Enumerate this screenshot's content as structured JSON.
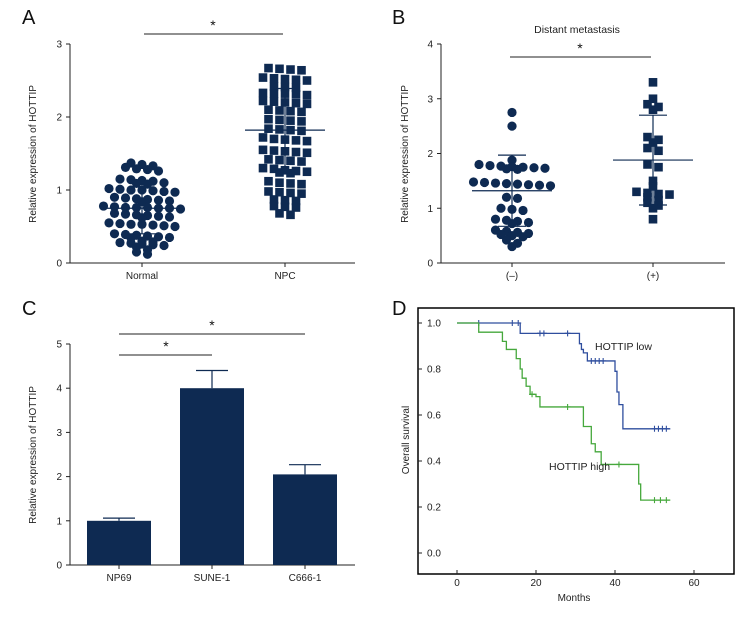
{
  "colors": {
    "navy": "#0e2a52",
    "km_low": "#2f4e9e",
    "km_high": "#46a83c",
    "axis": "#222222"
  },
  "chart_data": [
    {
      "panel": "A",
      "type": "scatter",
      "title": "",
      "xlabel": "",
      "ylabel": "Relative expression of HOTTIP",
      "ylim": [
        0,
        3
      ],
      "yticks": [
        "0",
        "1",
        "2",
        "3"
      ],
      "categories": [
        "Normal",
        "NPC"
      ],
      "significance": [
        {
          "from": "Normal",
          "to": "NPC",
          "label": "*"
        }
      ],
      "series": [
        {
          "name": "Normal",
          "marker": "circle",
          "mean": 0.75,
          "sd": 0.35,
          "values": [
            1.37,
            1.35,
            1.33,
            1.31,
            1.29,
            1.28,
            1.26,
            1.15,
            1.14,
            1.13,
            1.12,
            1.1,
            1.09,
            1.08,
            1.02,
            1.01,
            1.0,
            1.0,
            0.99,
            0.98,
            0.97,
            0.9,
            0.89,
            0.88,
            0.87,
            0.86,
            0.85,
            0.84,
            0.78,
            0.77,
            0.76,
            0.76,
            0.76,
            0.75,
            0.75,
            0.74,
            0.68,
            0.67,
            0.66,
            0.65,
            0.64,
            0.63,
            0.62,
            0.55,
            0.54,
            0.53,
            0.53,
            0.52,
            0.51,
            0.5,
            0.4,
            0.39,
            0.38,
            0.37,
            0.36,
            0.35,
            0.34,
            0.3,
            0.29,
            0.28,
            0.27,
            0.26,
            0.25,
            0.24,
            0.22,
            0.18,
            0.15,
            0.12
          ]
        },
        {
          "name": "NPC",
          "marker": "square",
          "mean": 1.82,
          "sd": 0.57,
          "values": [
            2.67,
            2.66,
            2.65,
            2.64,
            2.54,
            2.53,
            2.52,
            2.51,
            2.5,
            2.42,
            2.41,
            2.4,
            2.33,
            2.32,
            2.32,
            2.31,
            2.3,
            2.22,
            2.21,
            2.2,
            2.19,
            2.18,
            2.1,
            2.09,
            2.08,
            2.07,
            1.97,
            1.96,
            1.95,
            1.94,
            1.84,
            1.83,
            1.82,
            1.81,
            1.72,
            1.7,
            1.69,
            1.68,
            1.67,
            1.55,
            1.54,
            1.53,
            1.52,
            1.51,
            1.42,
            1.41,
            1.4,
            1.39,
            1.3,
            1.29,
            1.27,
            1.26,
            1.25,
            1.24,
            1.23,
            1.12,
            1.1,
            1.09,
            1.08,
            0.98,
            0.97,
            0.96,
            0.95,
            0.87,
            0.86,
            0.85,
            0.78,
            0.77,
            0.76,
            0.68,
            0.66
          ]
        }
      ]
    },
    {
      "panel": "B",
      "type": "scatter",
      "title": "Distant metastasis",
      "xlabel": "",
      "ylabel": "Relative expression of HOTTIP",
      "ylim": [
        0,
        4
      ],
      "yticks": [
        "0",
        "1",
        "2",
        "3",
        "4"
      ],
      "categories": [
        "(–)",
        "(+)"
      ],
      "significance": [
        {
          "from": "(–)",
          "to": "(+)",
          "label": "*"
        }
      ],
      "series": [
        {
          "name": "(–)",
          "marker": "circle",
          "mean": 1.32,
          "sd": 0.65,
          "values": [
            2.75,
            2.5,
            1.88,
            1.8,
            1.78,
            1.77,
            1.76,
            1.75,
            1.74,
            1.73,
            1.72,
            1.71,
            1.48,
            1.47,
            1.46,
            1.45,
            1.44,
            1.43,
            1.42,
            1.41,
            1.2,
            1.18,
            1.0,
            0.98,
            0.96,
            0.8,
            0.78,
            0.76,
            0.74,
            0.72,
            0.6,
            0.58,
            0.56,
            0.54,
            0.52,
            0.5,
            0.48,
            0.42,
            0.36,
            0.3
          ]
        },
        {
          "name": "(+)",
          "marker": "square",
          "mean": 1.88,
          "sd": 0.82,
          "values": [
            3.3,
            3.0,
            2.9,
            2.85,
            2.8,
            2.3,
            2.25,
            2.2,
            2.1,
            2.05,
            1.8,
            1.75,
            1.5,
            1.4,
            1.3,
            1.28,
            1.26,
            1.25,
            1.2,
            1.15,
            1.1,
            1.05,
            1.0,
            0.8
          ]
        }
      ]
    },
    {
      "panel": "C",
      "type": "bar",
      "title": "",
      "xlabel": "",
      "ylabel": "Relative expression of HOTTIP",
      "ylim": [
        0,
        5
      ],
      "yticks": [
        "0",
        "1",
        "2",
        "3",
        "4",
        "5"
      ],
      "categories": [
        "NP69",
        "SUNE-1",
        "C666-1"
      ],
      "values": [
        1.0,
        4.0,
        2.05
      ],
      "errors": [
        0.06,
        0.4,
        0.22
      ],
      "significance": [
        {
          "from": "NP69",
          "to": "SUNE-1",
          "label": "*"
        },
        {
          "from": "NP69",
          "to": "C666-1",
          "label": "*"
        }
      ]
    },
    {
      "panel": "D",
      "type": "line",
      "title": "",
      "xlabel": "Months",
      "ylabel": "Overall survival",
      "xlim": [
        0,
        60
      ],
      "ylim": [
        0,
        1.0
      ],
      "xticks": [
        "0",
        "20",
        "40",
        "60"
      ],
      "yticks": [
        "0.0",
        "0.2",
        "0.4",
        "0.6",
        "0.8",
        "1.0"
      ],
      "series": [
        {
          "name": "HOTTIP low",
          "step": true,
          "censor_marker": "+",
          "points": [
            [
              0,
              1.0
            ],
            [
              15,
              1.0
            ],
            [
              16,
              0.955
            ],
            [
              30,
              0.955
            ],
            [
              31,
              0.91
            ],
            [
              31.5,
              0.885
            ],
            [
              32,
              0.87
            ],
            [
              33,
              0.835
            ],
            [
              38,
              0.835
            ],
            [
              40,
              0.79
            ],
            [
              40.5,
              0.7
            ],
            [
              41,
              0.645
            ],
            [
              42,
              0.54
            ],
            [
              54,
              0.54
            ]
          ],
          "censored": [
            [
              5.5,
              1.0
            ],
            [
              14,
              1.0
            ],
            [
              15.5,
              1.0
            ],
            [
              21,
              0.955
            ],
            [
              22,
              0.955
            ],
            [
              28,
              0.955
            ],
            [
              34,
              0.835
            ],
            [
              35,
              0.835
            ],
            [
              36,
              0.835
            ],
            [
              37,
              0.835
            ],
            [
              50,
              0.54
            ],
            [
              51,
              0.54
            ],
            [
              52,
              0.54
            ],
            [
              53,
              0.54
            ]
          ]
        },
        {
          "name": "HOTTIP high",
          "step": true,
          "censor_marker": "+",
          "points": [
            [
              0,
              1.0
            ],
            [
              5,
              1.0
            ],
            [
              5.5,
              0.96
            ],
            [
              11,
              0.96
            ],
            [
              11.5,
              0.92
            ],
            [
              12.5,
              0.885
            ],
            [
              15,
              0.845
            ],
            [
              16,
              0.8
            ],
            [
              16.5,
              0.76
            ],
            [
              17.5,
              0.725
            ],
            [
              18.5,
              0.69
            ],
            [
              20,
              0.68
            ],
            [
              21,
              0.635
            ],
            [
              31,
              0.635
            ],
            [
              32,
              0.55
            ],
            [
              34,
              0.475
            ],
            [
              35,
              0.44
            ],
            [
              36.5,
              0.385
            ],
            [
              45.5,
              0.385
            ],
            [
              46,
              0.3
            ],
            [
              46.5,
              0.23
            ],
            [
              54,
              0.23
            ]
          ],
          "censored": [
            [
              19,
              0.69
            ],
            [
              28,
              0.635
            ],
            [
              41,
              0.385
            ],
            [
              50,
              0.23
            ],
            [
              51.5,
              0.23
            ],
            [
              53,
              0.23
            ]
          ]
        }
      ]
    }
  ],
  "panels": [
    {
      "letter": "A"
    },
    {
      "letter": "B"
    },
    {
      "letter": "C"
    },
    {
      "letter": "D"
    }
  ]
}
